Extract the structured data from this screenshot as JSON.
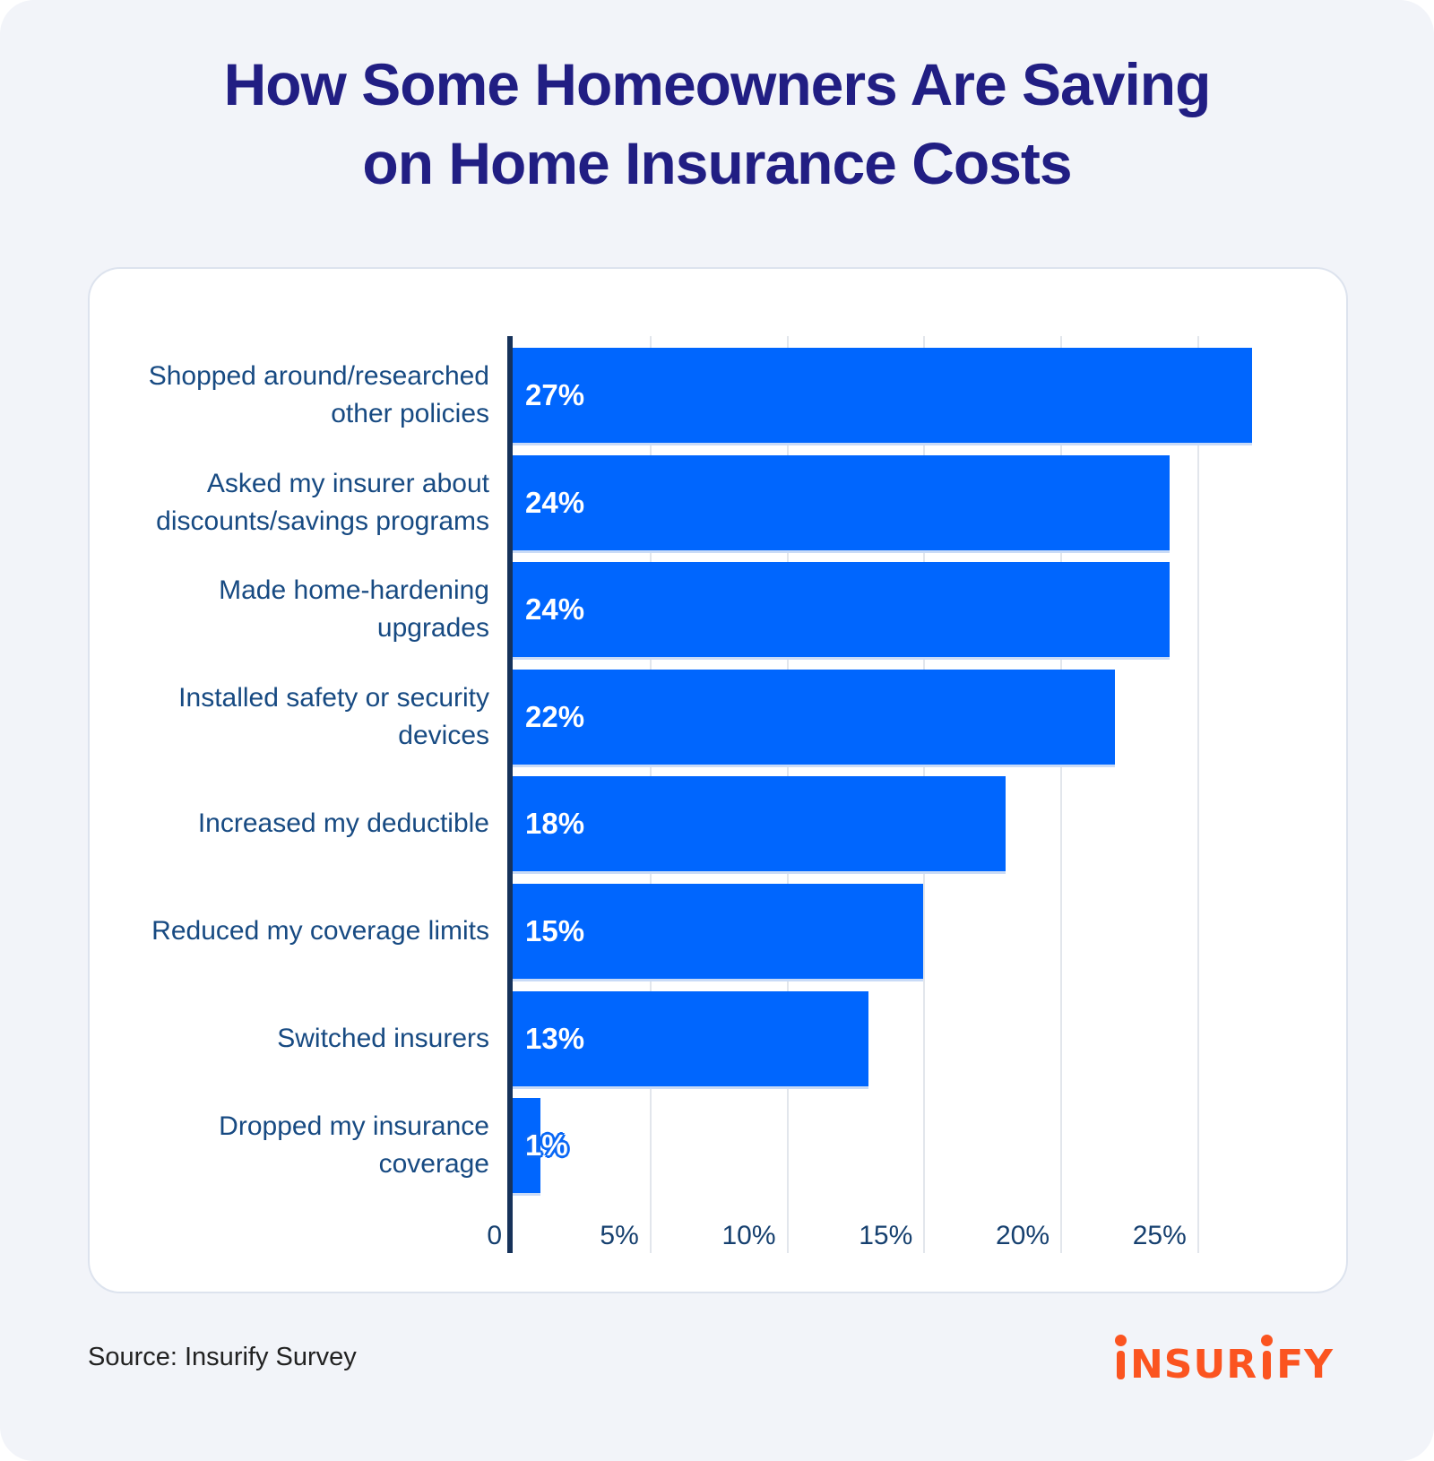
{
  "page": {
    "title_line1": "How Some Homeowners Are Saving",
    "title_line2": "on Home Insurance Costs",
    "source_label": "Source: Insurify Survey",
    "logo": {
      "text": "insurify",
      "part_mid": "NSUR",
      "part_end": "FY",
      "color": "#fb5420"
    }
  },
  "colors": {
    "background": "#f2f4f9",
    "card": "#ffffff",
    "card_border": "#dde3ee",
    "title": "#211e83",
    "category_text": "#174a82",
    "tick_text": "#16406f",
    "bar": "#0066fe",
    "axis_line": "#16325a",
    "gridline": "#e2e6ec",
    "value_text": "#ffffff",
    "source_text": "#222222"
  },
  "chart_data": {
    "type": "bar",
    "orientation": "horizontal",
    "title": "How Some Homeowners Are Saving on Home Insurance Costs",
    "source": "Insurify Survey",
    "categories": [
      "Shopped around/researched other policies",
      "Asked my insurer about discounts/savings programs",
      "Made home-hardening upgrades",
      "Installed safety or security devices",
      "Increased my deductible",
      "Reduced my coverage limits",
      "Switched insurers",
      "Dropped my insurance coverage"
    ],
    "category_line_breaks": [
      [
        "Shopped around/researched",
        "other policies"
      ],
      [
        "Asked my insurer about",
        "discounts/savings programs"
      ],
      [
        "Made home-hardening",
        "upgrades"
      ],
      [
        "Installed safety or security",
        "devices"
      ],
      [
        "Increased my deductible"
      ],
      [
        "Reduced my coverage limits"
      ],
      [
        "Switched insurers"
      ],
      [
        "Dropped my insurance",
        "coverage"
      ]
    ],
    "values": [
      27,
      24,
      24,
      22,
      18,
      15,
      13,
      1
    ],
    "data_labels": [
      "27%",
      "24%",
      "24%",
      "22%",
      "18%",
      "15%",
      "13%",
      "1%"
    ],
    "x_ticks": [
      {
        "value": 0,
        "label": "0"
      },
      {
        "value": 5,
        "label": "5%"
      },
      {
        "value": 10,
        "label": "10%"
      },
      {
        "value": 15,
        "label": "15%"
      },
      {
        "value": 20,
        "label": "20%"
      },
      {
        "value": 25,
        "label": "25%"
      }
    ],
    "xlim": [
      0,
      29
    ],
    "grid": true,
    "legend": false
  }
}
